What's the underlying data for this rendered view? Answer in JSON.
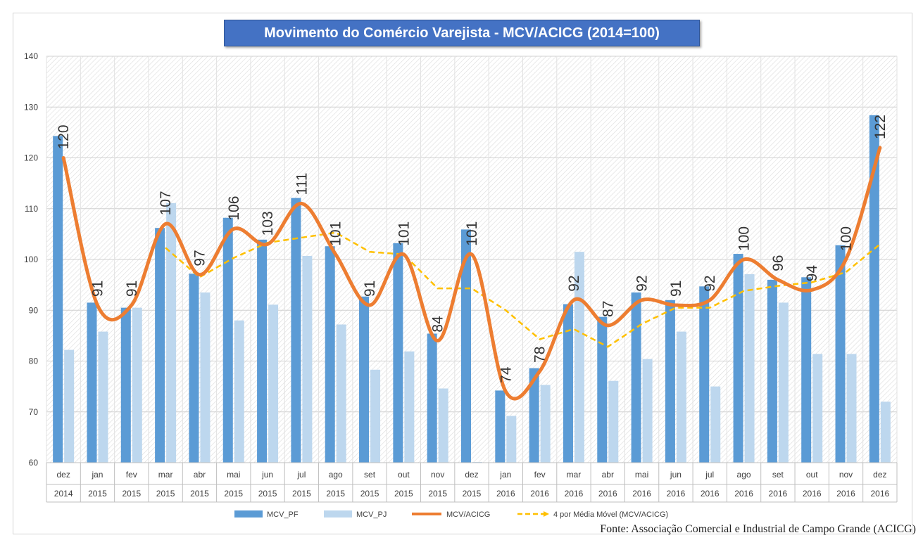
{
  "chart_data": {
    "type": "bar",
    "title": "Movimento do Comércio Varejista - MCV/ACICG (2014=100)",
    "ylim": [
      60,
      140
    ],
    "yticks": [
      60,
      70,
      80,
      90,
      100,
      110,
      120,
      130,
      140
    ],
    "categories": [
      {
        "month": "dez",
        "year": "2014"
      },
      {
        "month": "jan",
        "year": "2015"
      },
      {
        "month": "fev",
        "year": "2015"
      },
      {
        "month": "mar",
        "year": "2015"
      },
      {
        "month": "abr",
        "year": "2015"
      },
      {
        "month": "mai",
        "year": "2015"
      },
      {
        "month": "jun",
        "year": "2015"
      },
      {
        "month": "jul",
        "year": "2015"
      },
      {
        "month": "ago",
        "year": "2015"
      },
      {
        "month": "set",
        "year": "2015"
      },
      {
        "month": "out",
        "year": "2015"
      },
      {
        "month": "nov",
        "year": "2015"
      },
      {
        "month": "dez",
        "year": "2015"
      },
      {
        "month": "jan",
        "year": "2016"
      },
      {
        "month": "fev",
        "year": "2016"
      },
      {
        "month": "mar",
        "year": "2016"
      },
      {
        "month": "abr",
        "year": "2016"
      },
      {
        "month": "mai",
        "year": "2016"
      },
      {
        "month": "jun",
        "year": "2016"
      },
      {
        "month": "jul",
        "year": "2016"
      },
      {
        "month": "ago",
        "year": "2016"
      },
      {
        "month": "set",
        "year": "2016"
      },
      {
        "month": "out",
        "year": "2016"
      },
      {
        "month": "nov",
        "year": "2016"
      },
      {
        "month": "dez",
        "year": "2016"
      }
    ],
    "series": [
      {
        "name": "MCV_PF",
        "kind": "bar",
        "color": "#5b9bd5",
        "values": [
          124.3,
          91.5,
          90.5,
          106.2,
          97.2,
          108.2,
          103.9,
          112.1,
          102.6,
          92.7,
          103.2,
          85.4,
          105.9,
          74.2,
          78.6,
          91.2,
          88.7,
          93.5,
          92.0,
          94.7,
          101.1,
          96.0,
          96.5,
          102.8,
          128.4
        ]
      },
      {
        "name": "MCV_PJ",
        "kind": "bar",
        "color": "#bdd7ee",
        "values": [
          82.2,
          85.8,
          90.5,
          111.1,
          93.5,
          88.0,
          91.1,
          100.7,
          87.2,
          78.3,
          81.9,
          74.6,
          60.0,
          69.2,
          75.3,
          101.5,
          76.1,
          80.4,
          85.8,
          75.0,
          97.1,
          91.5,
          81.4,
          81.4,
          72.0
        ]
      },
      {
        "name": "MCV/ACICG",
        "kind": "line",
        "color": "#ed7d31",
        "values": [
          120,
          91,
          91,
          107,
          97,
          106,
          103,
          111,
          101,
          91,
          101,
          84,
          101,
          74,
          78,
          92,
          87,
          92,
          91,
          92,
          100,
          96,
          94,
          100,
          122
        ]
      },
      {
        "name": "4 por Média Móvel (MCV/ACICG)",
        "kind": "moving-average",
        "color": "#ffc000",
        "values": [
          null,
          null,
          null,
          102.3,
          96.5,
          100.3,
          103.3,
          104.3,
          105.3,
          101.5,
          101.0,
          94.3,
          94.3,
          90.0,
          84.3,
          86.3,
          82.8,
          87.3,
          90.5,
          90.5,
          93.8,
          94.8,
          95.5,
          97.5,
          103.0
        ]
      }
    ],
    "data_labels": [
      "120",
      "91",
      "91",
      "107",
      "97",
      "106",
      "103",
      "111",
      "101",
      "91",
      "101",
      "84",
      "101",
      "74",
      "78",
      "92",
      "87",
      "92",
      "91",
      "92",
      "100",
      "96",
      "94",
      "100",
      "122"
    ],
    "legend": [
      "MCV_PF",
      "MCV_PJ",
      "MCV/ACICG",
      "4 por Média Móvel (MCV/ACICG)"
    ],
    "legend_position": "bottom",
    "grid": true
  },
  "source_text": "Fonte:  Associação Comercial e Industrial de Campo Grande (ACICG)"
}
